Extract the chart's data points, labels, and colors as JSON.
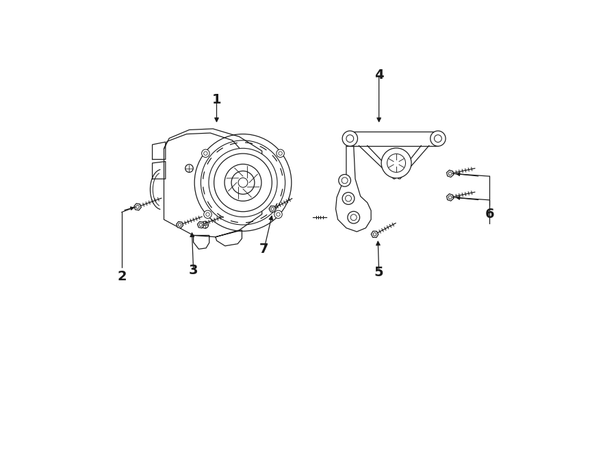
{
  "bg_color": "#ffffff",
  "line_color": "#1a1a1a",
  "figsize": [
    9.0,
    6.61
  ],
  "dpi": 100,
  "xlim": [
    0,
    9
  ],
  "ylim": [
    0,
    6.61
  ]
}
